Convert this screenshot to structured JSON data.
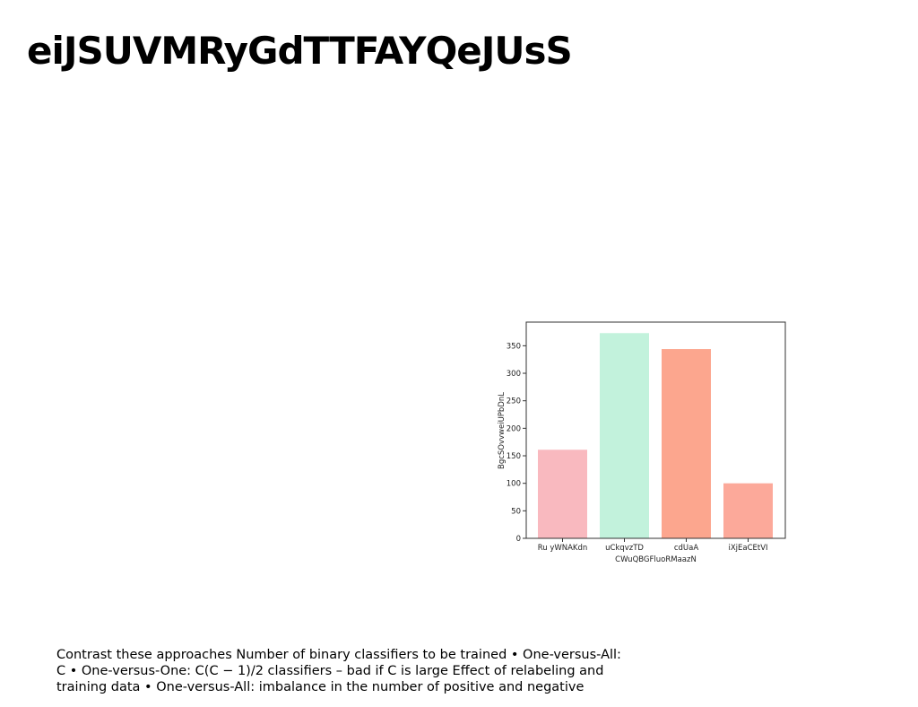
{
  "slide": {
    "title": "eiJSUVMRyGdTTFAYQeJUsS",
    "caption": "Contrast these approaches Number of binary classifiers to be trained • One-versus-All: C • One-versus-One: C(C − 1)/2 classifiers – bad if C is large Effect of relabeling and training data • One-versus-All: imbalance in the number of positive and negative"
  },
  "chart_data": {
    "type": "bar",
    "title": "",
    "xlabel": "CWuQBGFluoRMaazN",
    "ylabel": "BgcSOvvweiUPbDnL",
    "categories": [
      "Ru yWNAKdn",
      "uCkqvzTD",
      "cdUaA",
      "iXjEaCEtVI"
    ],
    "values": [
      161,
      373,
      344,
      100
    ],
    "colors": [
      "#f9b9bf",
      "#c2f2dc",
      "#fca68e",
      "#fca99a"
    ],
    "ylim": [
      0,
      393
    ],
    "yticks": [
      0,
      50,
      100,
      150,
      200,
      250,
      300,
      350
    ],
    "grid": false
  }
}
